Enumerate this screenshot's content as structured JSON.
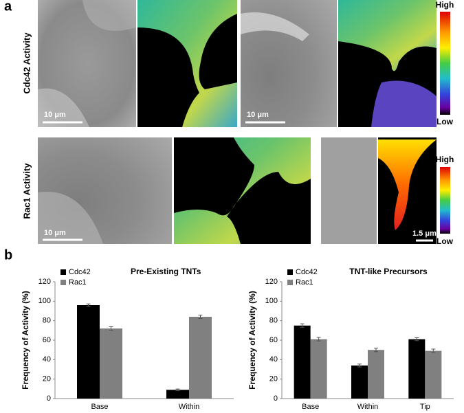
{
  "panels": {
    "a": "a",
    "b": "b"
  },
  "rows": [
    {
      "label": "Cdc42 Activity",
      "scale_bars": [
        "10 μm",
        "10 μm"
      ],
      "colorbar": {
        "high": "High",
        "low": "Low"
      }
    },
    {
      "label": "Rac1 Activity",
      "scale_bars": [
        "10 μm",
        "1.5 μm"
      ],
      "colorbar": {
        "high": "High",
        "low": "Low"
      }
    }
  ],
  "chart_data": [
    {
      "type": "bar",
      "title": "Pre-Existing TNTs",
      "y_label": "Frequency of Activity (%)",
      "categories": [
        "Base",
        "Within"
      ],
      "series": [
        {
          "name": "Cdc42",
          "color": "#000000",
          "values": [
            96,
            9
          ],
          "errors": [
            1.2,
            0.8
          ]
        },
        {
          "name": "Rac1",
          "color": "#808080",
          "values": [
            72,
            84
          ],
          "errors": [
            1.8,
            1.8
          ]
        }
      ],
      "ylim": [
        0,
        120
      ],
      "yticks": [
        0,
        20,
        40,
        60,
        80,
        100,
        120
      ]
    },
    {
      "type": "bar",
      "title": "TNT-like Precursors",
      "y_label": "Frequency of Activity (%)",
      "categories": [
        "Base",
        "Within",
        "Tip"
      ],
      "series": [
        {
          "name": "Cdc42",
          "color": "#000000",
          "values": [
            75,
            34,
            61
          ],
          "errors": [
            1.8,
            1.5,
            1.5
          ]
        },
        {
          "name": "Rac1",
          "color": "#808080",
          "values": [
            61,
            50,
            49
          ],
          "errors": [
            1.8,
            1.8,
            1.8
          ]
        }
      ],
      "ylim": [
        0,
        120
      ],
      "yticks": [
        0,
        20,
        40,
        60,
        80,
        100,
        120
      ]
    }
  ]
}
